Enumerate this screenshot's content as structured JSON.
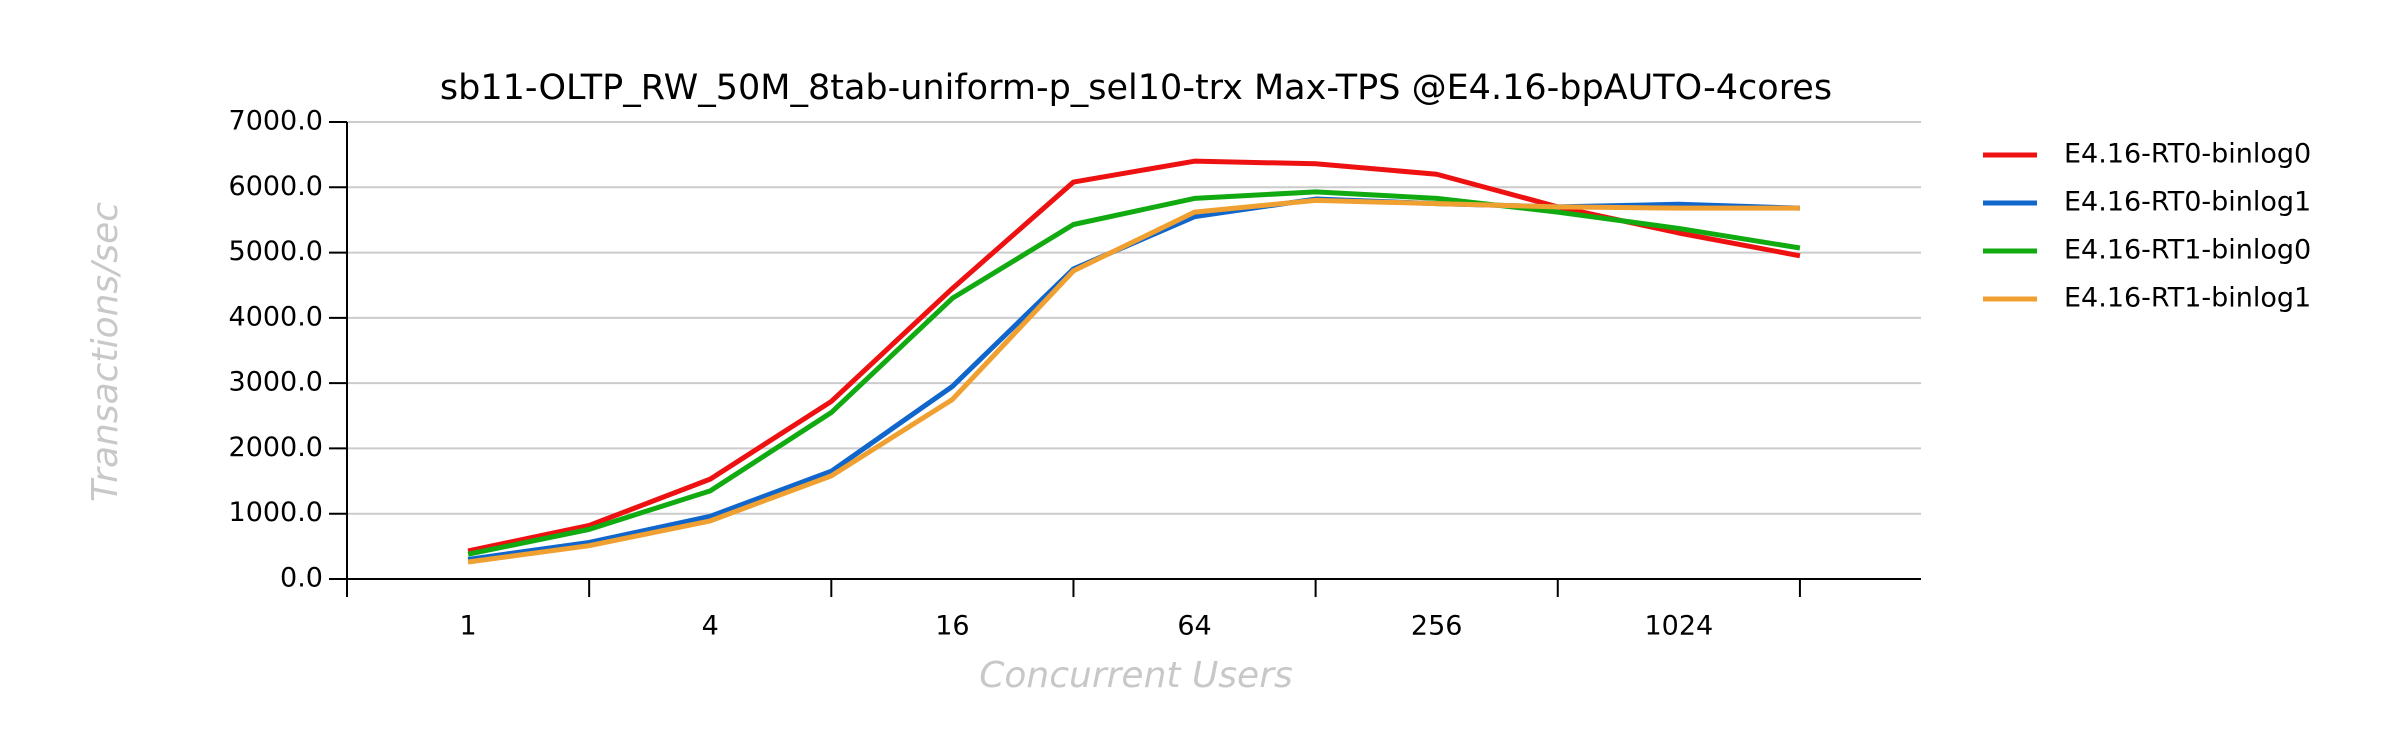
{
  "chart_data": {
    "type": "line",
    "title": "sb11-OLTP_RW_50M_8tab-uniform-p_sel10-trx Max-TPS @E4.16-bpAUTO-4cores",
    "x_label": "Concurrent Users",
    "y_label": "Transactions/sec",
    "categories": [
      "1",
      null,
      "4",
      null,
      "16",
      null,
      "64",
      null,
      "256",
      null,
      "1024",
      null
    ],
    "series": [
      {
        "name": "E4.16-RT0-binlog0",
        "color": "#ee1111",
        "values": [
          430,
          820,
          1530,
          2720,
          4450,
          6080,
          6400,
          6360,
          6200,
          5700,
          5300,
          4950
        ]
      },
      {
        "name": "E4.16-RT0-binlog1",
        "color": "#1166cc",
        "values": [
          300,
          560,
          960,
          1650,
          2950,
          4750,
          5550,
          5820,
          5750,
          5700,
          5740,
          5680
        ]
      },
      {
        "name": "E4.16-RT1-binlog0",
        "color": "#11aa11",
        "values": [
          380,
          760,
          1350,
          2550,
          4300,
          5430,
          5830,
          5930,
          5830,
          5620,
          5370,
          5070
        ]
      },
      {
        "name": "E4.16-RT1-binlog1",
        "color": "#f0a030",
        "values": [
          260,
          510,
          890,
          1580,
          2750,
          4720,
          5620,
          5800,
          5750,
          5700,
          5680,
          5680
        ]
      }
    ],
    "ylim": [
      0,
      7000
    ],
    "yticks": [
      {
        "value": 0,
        "label": "0.0"
      },
      {
        "value": 1000,
        "label": "1000.0"
      },
      {
        "value": 2000,
        "label": "2000.0"
      },
      {
        "value": 3000,
        "label": "3000.0"
      },
      {
        "value": 4000,
        "label": "4000.0"
      },
      {
        "value": 5000,
        "label": "5000.0"
      },
      {
        "value": 6000,
        "label": "6000.0"
      },
      {
        "value": 7000,
        "label": "7000.0"
      }
    ],
    "grid": true,
    "legend": "right"
  }
}
